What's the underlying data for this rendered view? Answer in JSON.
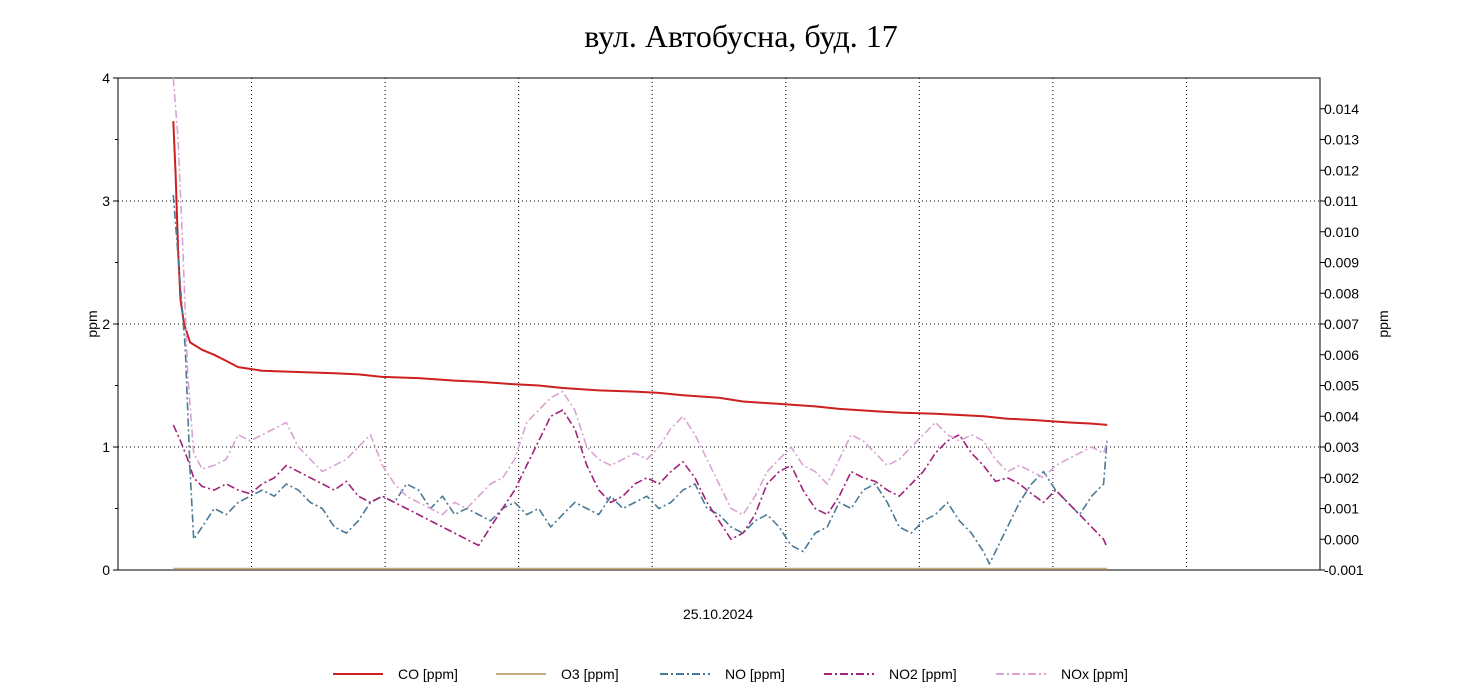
{
  "chart_data": {
    "type": "line",
    "title": "вул. Автобусна, буд. 17",
    "xlabel": "25.10.2024",
    "ylabel_left": "ppm",
    "ylabel_right": "ppm",
    "ylim_left": [
      0,
      4
    ],
    "ylim_right": [
      -0.001,
      0.015
    ],
    "xlim": [
      0,
      100
    ],
    "y_ticks_left": [
      "0",
      "1",
      "2",
      "3",
      "4"
    ],
    "y_ticks_right": [
      "-0.001",
      "0.000",
      "0.001",
      "0.002",
      "0.003",
      "0.004",
      "0.005",
      "0.006",
      "0.007",
      "0.008",
      "0.009",
      "0.010",
      "0.011",
      "0.012",
      "0.013",
      "0.014"
    ],
    "grid": true,
    "legend_position": "bottom",
    "series": [
      {
        "name": "CO [ppm]",
        "axis": "left",
        "color": "#cc1f1f",
        "style": "solid",
        "points": [
          [
            4.6,
            3.65
          ],
          [
            4.8,
            3.2
          ],
          [
            5.0,
            2.6
          ],
          [
            5.2,
            2.2
          ],
          [
            5.5,
            2.0
          ],
          [
            6.0,
            1.85
          ],
          [
            7,
            1.79
          ],
          [
            8,
            1.75
          ],
          [
            9,
            1.7
          ],
          [
            10,
            1.65
          ],
          [
            12,
            1.62
          ],
          [
            15,
            1.61
          ],
          [
            18,
            1.6
          ],
          [
            20,
            1.59
          ],
          [
            22,
            1.57
          ],
          [
            25,
            1.56
          ],
          [
            28,
            1.54
          ],
          [
            30,
            1.53
          ],
          [
            33,
            1.51
          ],
          [
            35,
            1.5
          ],
          [
            37,
            1.48
          ],
          [
            40,
            1.46
          ],
          [
            43,
            1.45
          ],
          [
            45,
            1.44
          ],
          [
            47,
            1.42
          ],
          [
            50,
            1.4
          ],
          [
            52,
            1.37
          ],
          [
            55,
            1.35
          ],
          [
            58,
            1.33
          ],
          [
            60,
            1.31
          ],
          [
            63,
            1.29
          ],
          [
            65,
            1.28
          ],
          [
            68,
            1.27
          ],
          [
            70,
            1.26
          ],
          [
            72,
            1.25
          ],
          [
            74,
            1.23
          ],
          [
            76,
            1.22
          ],
          [
            79,
            1.2
          ],
          [
            81,
            1.19
          ],
          [
            82.3,
            1.18
          ]
        ]
      },
      {
        "name": "O3 [ppm]",
        "axis": "left",
        "color": "#c8aa82",
        "style": "solid",
        "points": [
          [
            4.6,
            0.01
          ],
          [
            30,
            0.01
          ],
          [
            60,
            0.01
          ],
          [
            82.3,
            0.01
          ]
        ]
      },
      {
        "name": "NO [ppm]",
        "axis": "left",
        "color": "#4a7a96",
        "style": "dashdot",
        "points": [
          [
            4.6,
            3.05
          ],
          [
            5.2,
            2.3
          ],
          [
            5.6,
            1.8
          ],
          [
            6.0,
            0.8
          ],
          [
            6.3,
            0.25
          ],
          [
            7,
            0.35
          ],
          [
            8,
            0.5
          ],
          [
            9,
            0.45
          ],
          [
            10,
            0.55
          ],
          [
            11,
            0.6
          ],
          [
            12,
            0.65
          ],
          [
            13,
            0.6
          ],
          [
            14,
            0.7
          ],
          [
            15,
            0.65
          ],
          [
            16,
            0.55
          ],
          [
            17,
            0.5
          ],
          [
            18,
            0.35
          ],
          [
            19,
            0.3
          ],
          [
            20,
            0.4
          ],
          [
            21,
            0.55
          ],
          [
            22,
            0.6
          ],
          [
            23,
            0.55
          ],
          [
            24,
            0.7
          ],
          [
            25,
            0.65
          ],
          [
            26,
            0.5
          ],
          [
            27,
            0.6
          ],
          [
            28,
            0.45
          ],
          [
            29,
            0.5
          ],
          [
            30,
            0.45
          ],
          [
            31,
            0.4
          ],
          [
            32,
            0.5
          ],
          [
            33,
            0.55
          ],
          [
            34,
            0.45
          ],
          [
            35,
            0.5
          ],
          [
            36,
            0.35
          ],
          [
            37,
            0.45
          ],
          [
            38,
            0.55
          ],
          [
            39,
            0.5
          ],
          [
            40,
            0.45
          ],
          [
            41,
            0.6
          ],
          [
            42,
            0.5
          ],
          [
            43,
            0.55
          ],
          [
            44,
            0.6
          ],
          [
            45,
            0.5
          ],
          [
            46,
            0.55
          ],
          [
            47,
            0.65
          ],
          [
            48,
            0.7
          ],
          [
            49,
            0.5
          ],
          [
            50,
            0.45
          ],
          [
            51,
            0.35
          ],
          [
            52,
            0.3
          ],
          [
            53,
            0.4
          ],
          [
            54,
            0.45
          ],
          [
            55,
            0.35
          ],
          [
            56,
            0.2
          ],
          [
            57,
            0.15
          ],
          [
            58,
            0.3
          ],
          [
            59,
            0.35
          ],
          [
            60,
            0.55
          ],
          [
            61,
            0.5
          ],
          [
            62,
            0.65
          ],
          [
            63,
            0.7
          ],
          [
            64,
            0.55
          ],
          [
            65,
            0.35
          ],
          [
            66,
            0.3
          ],
          [
            67,
            0.4
          ],
          [
            68,
            0.45
          ],
          [
            69,
            0.55
          ],
          [
            70,
            0.4
          ],
          [
            71,
            0.3
          ],
          [
            72,
            0.15
          ],
          [
            72.5,
            0.05
          ],
          [
            73,
            0.15
          ],
          [
            74,
            0.35
          ],
          [
            75,
            0.55
          ],
          [
            76,
            0.7
          ],
          [
            77,
            0.8
          ],
          [
            78,
            0.65
          ],
          [
            79,
            0.55
          ],
          [
            80,
            0.45
          ],
          [
            81,
            0.6
          ],
          [
            82,
            0.7
          ],
          [
            82.3,
            1.07
          ]
        ]
      },
      {
        "name": "NO2 [ppm]",
        "axis": "left",
        "color": "#a0207a",
        "style": "dashdot",
        "points": [
          [
            4.6,
            1.18
          ],
          [
            5.2,
            1.05
          ],
          [
            5.8,
            0.9
          ],
          [
            6.3,
            0.75
          ],
          [
            7,
            0.68
          ],
          [
            8,
            0.65
          ],
          [
            9,
            0.7
          ],
          [
            10,
            0.65
          ],
          [
            11,
            0.62
          ],
          [
            12,
            0.7
          ],
          [
            13,
            0.75
          ],
          [
            14,
            0.85
          ],
          [
            15,
            0.8
          ],
          [
            16,
            0.75
          ],
          [
            17,
            0.7
          ],
          [
            18,
            0.65
          ],
          [
            19,
            0.72
          ],
          [
            20,
            0.6
          ],
          [
            21,
            0.55
          ],
          [
            22,
            0.6
          ],
          [
            23,
            0.55
          ],
          [
            24,
            0.5
          ],
          [
            25,
            0.45
          ],
          [
            26,
            0.4
          ],
          [
            27,
            0.35
          ],
          [
            28,
            0.3
          ],
          [
            29,
            0.25
          ],
          [
            30,
            0.2
          ],
          [
            31,
            0.35
          ],
          [
            32,
            0.5
          ],
          [
            33,
            0.65
          ],
          [
            34,
            0.85
          ],
          [
            35,
            1.05
          ],
          [
            36,
            1.25
          ],
          [
            37,
            1.3
          ],
          [
            38,
            1.15
          ],
          [
            39,
            0.85
          ],
          [
            40,
            0.65
          ],
          [
            41,
            0.55
          ],
          [
            42,
            0.6
          ],
          [
            43,
            0.7
          ],
          [
            44,
            0.75
          ],
          [
            45,
            0.7
          ],
          [
            46,
            0.8
          ],
          [
            47,
            0.88
          ],
          [
            48,
            0.75
          ],
          [
            49,
            0.55
          ],
          [
            50,
            0.4
          ],
          [
            51,
            0.25
          ],
          [
            52,
            0.3
          ],
          [
            53,
            0.45
          ],
          [
            54,
            0.7
          ],
          [
            55,
            0.8
          ],
          [
            56,
            0.85
          ],
          [
            57,
            0.65
          ],
          [
            58,
            0.5
          ],
          [
            59,
            0.45
          ],
          [
            60,
            0.6
          ],
          [
            61,
            0.8
          ],
          [
            62,
            0.75
          ],
          [
            63,
            0.72
          ],
          [
            64,
            0.65
          ],
          [
            65,
            0.6
          ],
          [
            66,
            0.7
          ],
          [
            67,
            0.8
          ],
          [
            68,
            0.95
          ],
          [
            69,
            1.05
          ],
          [
            70,
            1.1
          ],
          [
            71,
            0.95
          ],
          [
            72,
            0.85
          ],
          [
            73,
            0.72
          ],
          [
            74,
            0.75
          ],
          [
            75,
            0.7
          ],
          [
            76,
            0.62
          ],
          [
            77,
            0.55
          ],
          [
            78,
            0.65
          ],
          [
            79,
            0.55
          ],
          [
            80,
            0.45
          ],
          [
            81,
            0.35
          ],
          [
            82,
            0.25
          ],
          [
            82.3,
            0.18
          ]
        ]
      },
      {
        "name": "NOx [ppm]",
        "axis": "left",
        "color": "#d9a3d4",
        "style": "dashdot",
        "points": [
          [
            4.6,
            4.0
          ],
          [
            5.0,
            3.5
          ],
          [
            5.4,
            2.6
          ],
          [
            5.8,
            1.6
          ],
          [
            6.3,
            0.95
          ],
          [
            7,
            0.82
          ],
          [
            8,
            0.85
          ],
          [
            9,
            0.9
          ],
          [
            10,
            1.1
          ],
          [
            11,
            1.05
          ],
          [
            12,
            1.1
          ],
          [
            13,
            1.15
          ],
          [
            14,
            1.2
          ],
          [
            15,
            1.0
          ],
          [
            16,
            0.9
          ],
          [
            17,
            0.8
          ],
          [
            18,
            0.85
          ],
          [
            19,
            0.9
          ],
          [
            20,
            1.0
          ],
          [
            21,
            1.1
          ],
          [
            22,
            0.85
          ],
          [
            23,
            0.7
          ],
          [
            24,
            0.6
          ],
          [
            25,
            0.55
          ],
          [
            26,
            0.5
          ],
          [
            27,
            0.45
          ],
          [
            28,
            0.55
          ],
          [
            29,
            0.5
          ],
          [
            30,
            0.6
          ],
          [
            31,
            0.7
          ],
          [
            32,
            0.75
          ],
          [
            33,
            0.9
          ],
          [
            34,
            1.2
          ],
          [
            35,
            1.3
          ],
          [
            36,
            1.4
          ],
          [
            37,
            1.45
          ],
          [
            38,
            1.3
          ],
          [
            39,
            1.0
          ],
          [
            40,
            0.9
          ],
          [
            41,
            0.85
          ],
          [
            42,
            0.9
          ],
          [
            43,
            0.95
          ],
          [
            44,
            0.9
          ],
          [
            45,
            1.0
          ],
          [
            46,
            1.15
          ],
          [
            47,
            1.25
          ],
          [
            48,
            1.1
          ],
          [
            49,
            0.9
          ],
          [
            50,
            0.7
          ],
          [
            51,
            0.5
          ],
          [
            52,
            0.45
          ],
          [
            53,
            0.6
          ],
          [
            54,
            0.8
          ],
          [
            55,
            0.9
          ],
          [
            56,
            1.0
          ],
          [
            57,
            0.85
          ],
          [
            58,
            0.8
          ],
          [
            59,
            0.7
          ],
          [
            60,
            0.9
          ],
          [
            61,
            1.1
          ],
          [
            62,
            1.05
          ],
          [
            63,
            0.95
          ],
          [
            64,
            0.85
          ],
          [
            65,
            0.9
          ],
          [
            66,
            1.0
          ],
          [
            67,
            1.1
          ],
          [
            68,
            1.2
          ],
          [
            69,
            1.1
          ],
          [
            70,
            1.05
          ],
          [
            71,
            1.1
          ],
          [
            72,
            1.05
          ],
          [
            73,
            0.9
          ],
          [
            74,
            0.8
          ],
          [
            75,
            0.85
          ],
          [
            76,
            0.8
          ],
          [
            77,
            0.75
          ],
          [
            78,
            0.85
          ],
          [
            79,
            0.9
          ],
          [
            80,
            0.95
          ],
          [
            81,
            1.0
          ],
          [
            82,
            0.95
          ],
          [
            82.3,
            1.05
          ]
        ]
      }
    ]
  }
}
